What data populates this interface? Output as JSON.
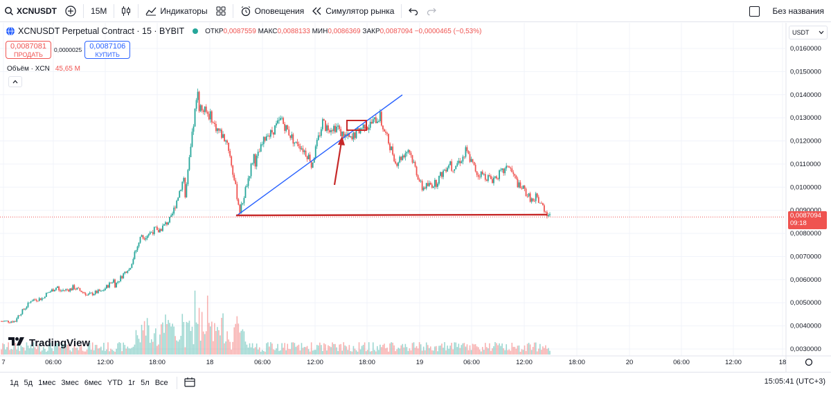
{
  "toolbar": {
    "symbol": "XCNUSDT",
    "interval": "15M",
    "indicators_label": "Индикаторы",
    "alerts_label": "Оповещения",
    "replay_label": "Симулятор рынка",
    "layout_name": "Без названия"
  },
  "legend": {
    "title": "XCNUSDT Perpetual Contract · 15 · BYBIT",
    "open_label": "ОТКР",
    "open": "0,0087559",
    "high_label": "МАКС",
    "high": "0,0088133",
    "low_label": "МИН",
    "low": "0,0086369",
    "close_label": "ЗАКР",
    "close": "0,0087094",
    "change": "−0,0000465 (−0,53%)"
  },
  "trade": {
    "sell_price": "0,0087081",
    "sell_label": "ПРОДАТЬ",
    "spread": "0,0000025",
    "buy_price": "0,0087106",
    "buy_label": "КУПИТЬ"
  },
  "volume": {
    "label": "Объём · XCN",
    "value": "45,65 M"
  },
  "price_axis": {
    "currency": "USDT",
    "last_price": "0,0087094",
    "countdown": "09:18",
    "ticks": [
      "0,0160000",
      "0,0150000",
      "0,0140000",
      "0,0130000",
      "0,0120000",
      "0,0110000",
      "0,0100000",
      "0,0090000",
      "0,0080000",
      "0,0070000",
      "0,0060000",
      "0,0050000",
      "0,0040000",
      "0,0030000"
    ]
  },
  "time_axis": {
    "ticks": [
      "7",
      "06:00",
      "12:00",
      "18:00",
      "18",
      "06:00",
      "12:00",
      "18:00",
      "19",
      "06:00",
      "12:00",
      "18:00",
      "20",
      "06:00",
      "12:00",
      "18"
    ]
  },
  "logo": "TradingView",
  "bottom": {
    "ranges": [
      "1д",
      "5д",
      "1мес",
      "3мес",
      "6мес",
      "YTD",
      "1г",
      "5л",
      "Все"
    ],
    "clock": "15:05:41 (UTC+3)"
  },
  "colors": {
    "up": "#26a69a",
    "down": "#ef5350",
    "trend": "#2962ff",
    "support": "#c62828"
  },
  "chart_data": {
    "type": "candlestick",
    "title": "XCNUSDT Perpetual Contract · 15 · BYBIT",
    "ylim": [
      0.0028,
      0.0167
    ],
    "anchors": [
      [
        0.0042,
        0.0042
      ],
      [
        0.0043,
        0.0042
      ],
      [
        0.0051,
        0.005
      ],
      [
        0.0053,
        0.0052
      ],
      [
        0.0055,
        0.0057
      ],
      [
        0.0057,
        0.0056
      ],
      [
        0.0053,
        0.0054
      ],
      [
        0.0054,
        0.0055
      ],
      [
        0.0057,
        0.006
      ],
      [
        0.0063,
        0.0065
      ],
      [
        0.0078,
        0.008
      ],
      [
        0.008,
        0.0082
      ],
      [
        0.0085,
        0.0086
      ],
      [
        0.0092,
        0.0105
      ],
      [
        0.0135,
        0.0145
      ],
      [
        0.0128,
        0.013
      ],
      [
        0.0122,
        0.012
      ],
      [
        0.009,
        0.0088
      ],
      [
        0.011,
        0.0115
      ],
      [
        0.0122,
        0.0125
      ],
      [
        0.0128,
        0.013
      ],
      [
        0.012,
        0.0118
      ],
      [
        0.0108,
        0.0112
      ],
      [
        0.0126,
        0.0132
      ],
      [
        0.0124,
        0.0126
      ],
      [
        0.0122,
        0.012
      ],
      [
        0.0126,
        0.0128
      ],
      [
        0.0128,
        0.0131
      ],
      [
        0.011,
        0.0112
      ],
      [
        0.0116,
        0.0117
      ],
      [
        0.01,
        0.0098
      ],
      [
        0.0103,
        0.0102
      ],
      [
        0.0108,
        0.0112
      ],
      [
        0.0116,
        0.0114
      ],
      [
        0.0106,
        0.0104
      ],
      [
        0.0104,
        0.0103
      ],
      [
        0.011,
        0.0108
      ],
      [
        0.01,
        0.0098
      ],
      [
        0.0096,
        0.0092
      ],
      [
        0.0089,
        0.0087
      ]
    ],
    "annotations": [
      "ascending trend line",
      "horizontal support line",
      "breakdown marker box",
      "red arrow"
    ]
  }
}
